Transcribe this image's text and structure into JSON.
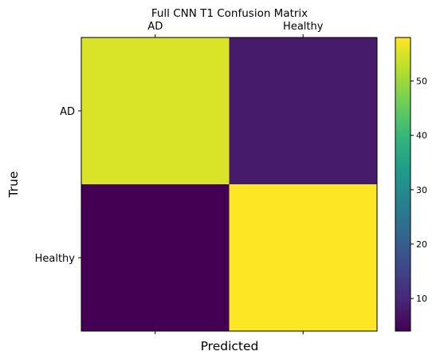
{
  "chart_data": {
    "type": "heatmap",
    "title": "Full CNN T1 Confusion Matrix",
    "xlabel": "Predicted",
    "ylabel": "True",
    "x_categories": [
      "AD",
      "Healthy"
    ],
    "y_categories": [
      "AD",
      "Healthy"
    ],
    "values": [
      [
        55,
        8
      ],
      [
        4,
        58
      ]
    ],
    "colorscale": "viridis",
    "colorbar": {
      "range": [
        4,
        58
      ],
      "ticks": [
        "10",
        "20",
        "30",
        "40",
        "50"
      ]
    },
    "colors": {
      "viridis_stops": [
        "#440154",
        "#482878",
        "#3e4989",
        "#31688e",
        "#26828e",
        "#1f9e89",
        "#35b779",
        "#6ece58",
        "#b5de2b",
        "#fde725"
      ]
    }
  }
}
